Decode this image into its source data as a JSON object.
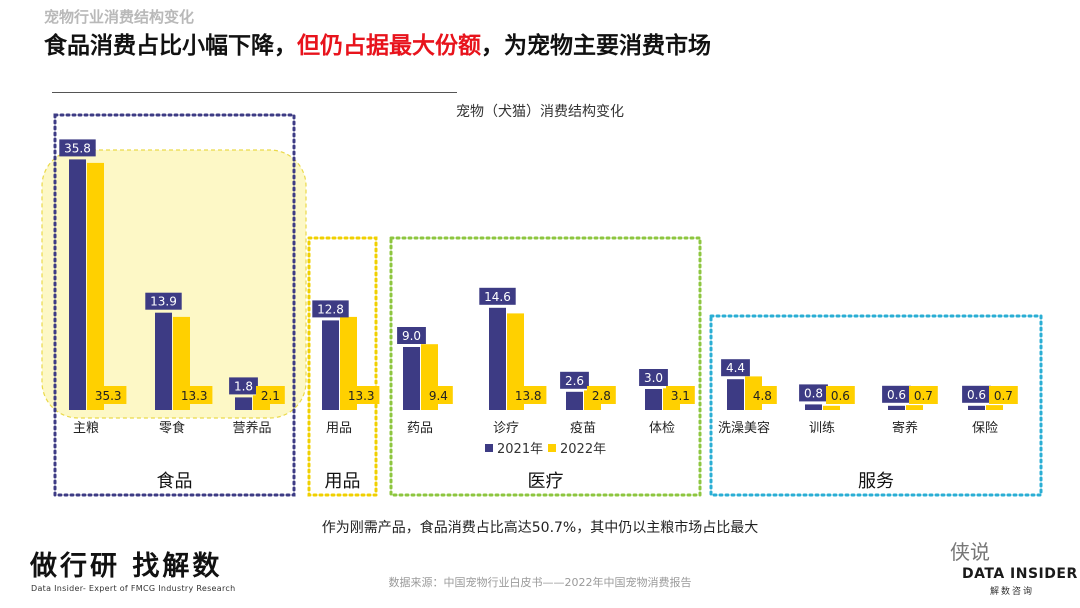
{
  "header": {
    "section_title": "宠物行业消费结构变化",
    "headline_part1": "食品消费占比小幅下降，",
    "headline_part2": "但仍占据最大份额",
    "headline_part3": "，为宠物主要消费市场"
  },
  "chart_data": {
    "type": "bar",
    "title": "宠物（犬猫）消费结构变化",
    "xlabel": "",
    "ylabel": "",
    "ylim": [
      0,
      40
    ],
    "grid": false,
    "legend_position": "bottom-center",
    "categories": [
      "主粮",
      "零食",
      "营养品",
      "用品",
      "药品",
      "诊疗",
      "疫苗",
      "体检",
      "洗澡美容",
      "训练",
      "寄养",
      "保险"
    ],
    "series": [
      {
        "name": "2021年",
        "color": "#3d3b84",
        "values": [
          35.8,
          13.9,
          1.8,
          12.8,
          9.0,
          14.6,
          2.6,
          3.0,
          4.4,
          0.8,
          0.6,
          0.6
        ]
      },
      {
        "name": "2022年",
        "color": "#ffd000",
        "values": [
          35.3,
          13.3,
          2.1,
          13.3,
          9.4,
          13.8,
          2.8,
          3.1,
          4.8,
          0.6,
          0.7,
          0.7
        ]
      }
    ],
    "groups": [
      {
        "label": "食品",
        "color": "#3d3b84",
        "categories": [
          "主粮",
          "零食",
          "营养品"
        ]
      },
      {
        "label": "用品",
        "color": "#f0d000",
        "categories": [
          "用品"
        ]
      },
      {
        "label": "医疗",
        "color": "#8dc63f",
        "categories": [
          "药品",
          "诊疗",
          "疫苗",
          "体检"
        ]
      },
      {
        "label": "服务",
        "color": "#2aaed4",
        "categories": [
          "洗澡美容",
          "训练",
          "寄养",
          "保险"
        ]
      }
    ]
  },
  "caption": "作为刚需产品，食品消费占比高达50.7%，其中仍以主粮市场占比最大",
  "footer": {
    "logo_cn": "做行研 找解数",
    "logo_en": "Data Insider- Expert of FMCG Industry Research",
    "source": "数据来源：中国宠物行业白皮书——2022年中国宠物消费报告",
    "watermark": "侠说",
    "brand_en": "DATA INSIDER",
    "brand_cn": "解数咨询"
  }
}
